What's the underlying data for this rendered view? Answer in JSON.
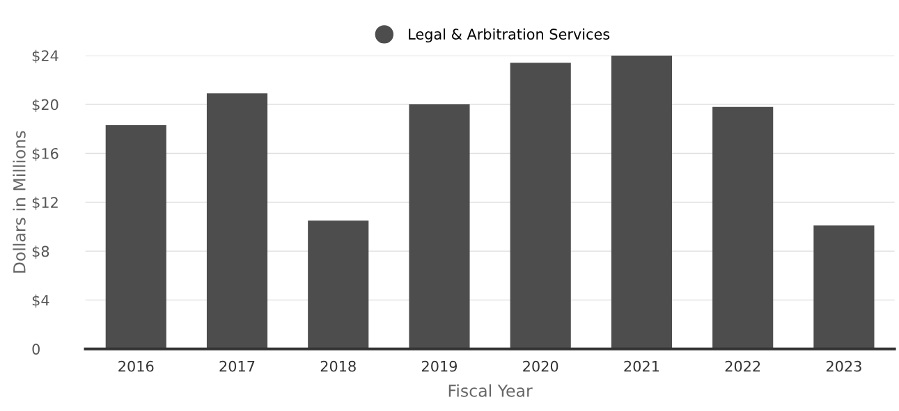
{
  "chart_data": {
    "type": "bar",
    "xlabel": "Fiscal Year",
    "ylabel": "Dollars in Millions",
    "categories": [
      "2016",
      "2017",
      "2018",
      "2019",
      "2020",
      "2021",
      "2022",
      "2023"
    ],
    "series": [
      {
        "name": "Legal & Arbitration Services",
        "color": "#4d4d4d",
        "values": [
          18.3,
          20.9,
          10.5,
          20.0,
          23.4,
          24.0,
          19.8,
          10.1
        ]
      }
    ],
    "ylim": [
      0,
      24
    ],
    "yticks": [
      {
        "value": 0,
        "label": "0"
      },
      {
        "value": 4,
        "label": "$4"
      },
      {
        "value": 8,
        "label": "$8"
      },
      {
        "value": 12,
        "label": "$12"
      },
      {
        "value": 16,
        "label": "$16"
      },
      {
        "value": 20,
        "label": "$20"
      },
      {
        "value": 24,
        "label": "$24"
      }
    ],
    "grid": "y",
    "legend": "top"
  }
}
